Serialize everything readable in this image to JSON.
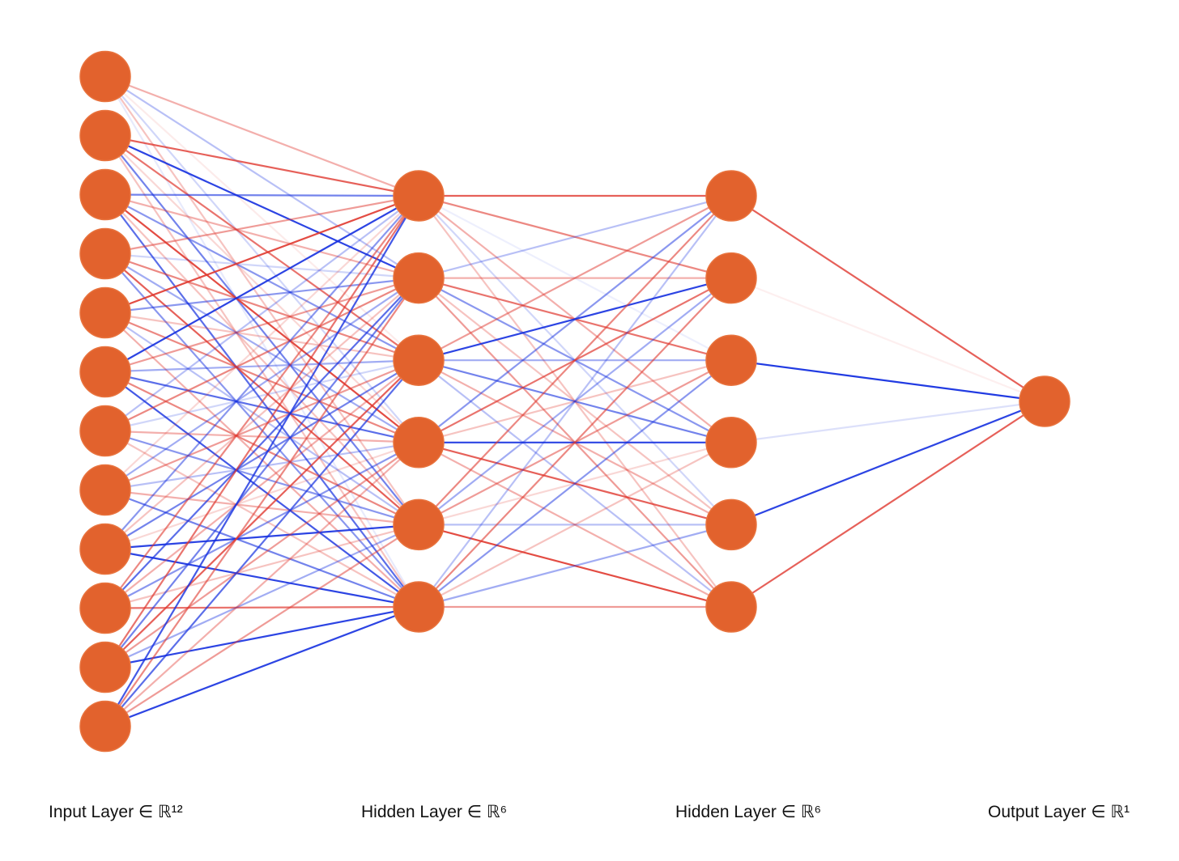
{
  "colors": {
    "node_fill": "#e2622d",
    "positive_edge": "#e0382f",
    "negative_edge": "#1530e0",
    "background": "#ffffff"
  },
  "layers": [
    {
      "size": 12,
      "label": "Input Layer ∈ ℝ¹²"
    },
    {
      "size": 6,
      "label": "Hidden Layer ∈ ℝ⁶"
    },
    {
      "size": 6,
      "label": "Hidden Layer ∈ ℝ⁶"
    },
    {
      "size": 1,
      "label": "Output Layer ∈ ℝ¹"
    }
  ],
  "weights": [
    [
      [
        0.4,
        -0.3,
        0.1,
        -0.2,
        0.3,
        -0.1
      ],
      [
        0.8,
        -0.9,
        0.7,
        0.2,
        -0.6,
        0.3
      ],
      [
        -0.6,
        0.4,
        -0.5,
        0.9,
        0.3,
        -0.7
      ],
      [
        0.5,
        -0.2,
        0.6,
        -0.4,
        0.8,
        -0.5
      ],
      [
        0.9,
        -0.5,
        0.3,
        0.6,
        -0.3,
        0.4
      ],
      [
        -0.9,
        0.5,
        -0.4,
        -0.7,
        0.6,
        -0.8
      ],
      [
        -0.3,
        0.6,
        -0.2,
        0.4,
        -0.5,
        0.3
      ],
      [
        0.2,
        -0.4,
        0.5,
        -0.3,
        0.4,
        -0.6
      ],
      [
        -0.5,
        0.3,
        -0.6,
        0.2,
        -0.9,
        -0.9
      ],
      [
        0.6,
        -0.7,
        0.4,
        -0.5,
        0.3,
        0.7
      ],
      [
        0.7,
        -0.6,
        0.8,
        0.5,
        -0.4,
        -0.9
      ],
      [
        -0.8,
        0.6,
        -0.7,
        0.4,
        0.5,
        -0.9
      ]
    ],
    [
      [
        0.8,
        0.6,
        -0.05,
        0.4,
        -0.2,
        0.3
      ],
      [
        -0.3,
        0.4,
        0.7,
        -0.5,
        0.3,
        0.5
      ],
      [
        0.5,
        -0.9,
        -0.4,
        -0.6,
        0.4,
        -0.3
      ],
      [
        -0.5,
        0.7,
        0.3,
        -0.9,
        0.8,
        0.4
      ],
      [
        0.6,
        -0.4,
        0.5,
        0.2,
        -0.3,
        0.9
      ],
      [
        -0.3,
        0.6,
        -0.5,
        0.3,
        -0.4,
        0.5
      ]
    ],
    [
      [
        0.8
      ],
      [
        0.05
      ],
      [
        -0.95
      ],
      [
        -0.15
      ],
      [
        -0.9
      ],
      [
        0.8
      ]
    ]
  ]
}
